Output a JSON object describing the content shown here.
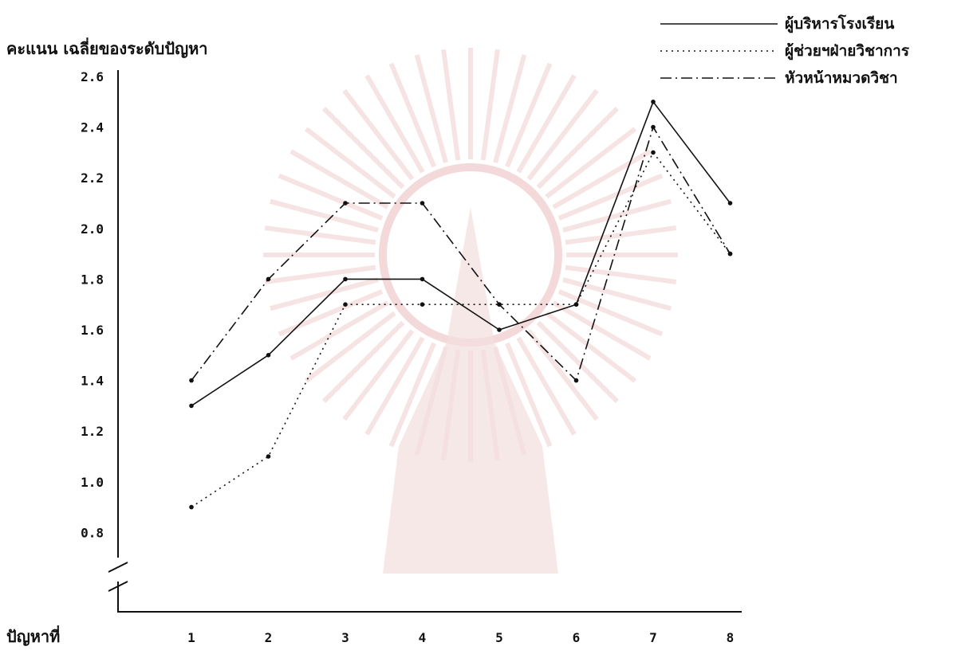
{
  "chart_data": {
    "type": "line",
    "title": "",
    "ylabel": "คะแนน เฉลี่ยของระดับปัญหา",
    "xlabel": "ปัญหาที่",
    "categories": [
      "1",
      "2",
      "3",
      "4",
      "5",
      "6",
      "7",
      "8"
    ],
    "y_ticks": [
      "2.6",
      "2.4",
      "2.2",
      "2.0",
      "1.8",
      "1.6",
      "1.4",
      "1.2",
      "1.0",
      "0.8"
    ],
    "ylim": [
      0.6,
      2.6
    ],
    "axis_break": true,
    "grid": false,
    "legend_position": "top-right",
    "series": [
      {
        "name": "ผู้บริหารโรงเรียน",
        "style": "solid",
        "values": [
          1.3,
          1.5,
          1.8,
          1.8,
          1.6,
          1.7,
          2.5,
          2.1
        ]
      },
      {
        "name": "ผู้ช่วยฯฝ่ายวิชาการ",
        "style": "dotted",
        "values": [
          0.9,
          1.1,
          1.7,
          1.7,
          1.7,
          1.7,
          2.3,
          1.9
        ]
      },
      {
        "name": "หัวหน้าหมวดวิชา",
        "style": "dashdot",
        "values": [
          1.4,
          1.8,
          2.1,
          2.1,
          1.7,
          1.4,
          2.4,
          1.9
        ]
      }
    ]
  }
}
